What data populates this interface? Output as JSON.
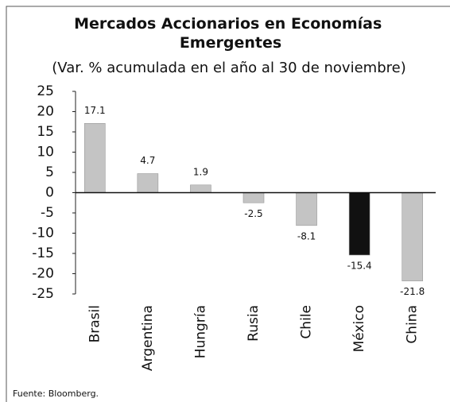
{
  "chart_data": {
    "type": "bar",
    "title": "Mercados Accionarios en Economías Emergentes",
    "subtitle": "(Var. % acumulada en el año al 30 de noviembre)",
    "categories": [
      "Brasil",
      "Argentina",
      "Hungría",
      "Rusia",
      "Chile",
      "México",
      "China"
    ],
    "values": [
      17.1,
      4.7,
      1.9,
      -2.5,
      -8.1,
      -15.4,
      -21.8
    ],
    "colors": [
      "#c4c4c4",
      "#c4c4c4",
      "#c4c4c4",
      "#c4c4c4",
      "#c4c4c4",
      "#111111",
      "#c4c4c4"
    ],
    "ylim": [
      -25,
      25
    ],
    "yticks": [
      -25,
      -20,
      -15,
      -10,
      -5,
      0,
      5,
      10,
      15,
      20,
      25
    ],
    "source": "Fuente: Bloomberg."
  }
}
